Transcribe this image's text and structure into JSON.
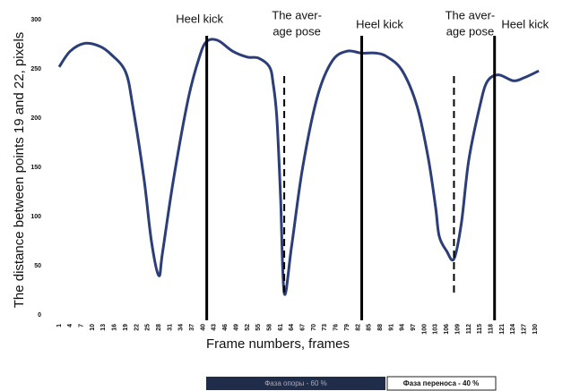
{
  "chart_data": {
    "type": "line",
    "y_label": "The distance between points 19 and 22, pixels",
    "x_label": "Frame numbers, frames",
    "xlim": [
      1,
      130
    ],
    "ylim": [
      0,
      300
    ],
    "xticks": [
      1,
      4,
      7,
      10,
      13,
      16,
      19,
      22,
      25,
      28,
      31,
      34,
      37,
      40,
      43,
      46,
      49,
      52,
      55,
      58,
      61,
      64,
      67,
      70,
      73,
      76,
      79,
      82,
      85,
      88,
      91,
      94,
      97,
      100,
      103,
      106,
      109,
      112,
      115,
      118,
      121,
      124,
      127,
      130
    ],
    "yticks": [
      0,
      50,
      100,
      150,
      200,
      250,
      300
    ],
    "series": [
      {
        "name": "Distance",
        "color": "#2c3e7a",
        "x": [
          1,
          4,
          8,
          12,
          15,
          19,
          21,
          24,
          26,
          28,
          29,
          32,
          36,
          39,
          41,
          44,
          48,
          52,
          55,
          58,
          59,
          60,
          61,
          62,
          64,
          67,
          71,
          75,
          79,
          83,
          87,
          90,
          94,
          98,
          101,
          103,
          104,
          106,
          108,
          110,
          112,
          115,
          117,
          120,
          124,
          127,
          131
        ],
        "values": [
          252,
          268,
          276,
          273,
          265,
          247,
          211,
          138,
          75,
          40,
          63,
          138,
          220,
          262,
          278,
          279,
          268,
          262,
          261,
          252,
          235,
          200,
          120,
          22,
          70,
          150,
          222,
          258,
          268,
          266,
          266,
          262,
          248,
          212,
          160,
          110,
          80,
          65,
          57,
          93,
          157,
          212,
          237,
          244,
          238,
          241,
          248
        ]
      }
    ],
    "annotations": [
      {
        "lines": [
          "Heel kick"
        ],
        "x": 41,
        "style": "solid"
      },
      {
        "lines": [
          "The aver-",
          "age pose"
        ],
        "x": 62,
        "style": "dashed"
      },
      {
        "lines": [
          "Heel kick"
        ],
        "x": 83,
        "style": "solid"
      },
      {
        "lines": [
          "The aver-",
          "age pose"
        ],
        "x": 108,
        "style": "dashed"
      },
      {
        "lines": [
          "Heel kick"
        ],
        "x": 119,
        "style": "solid"
      }
    ],
    "phase_bar": [
      "Фаза опоры - 60 %",
      "Фаза переноса - 40 %"
    ]
  }
}
